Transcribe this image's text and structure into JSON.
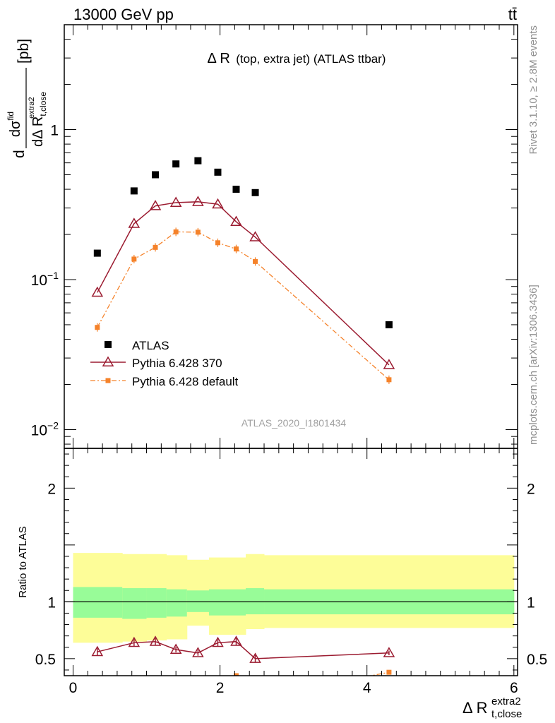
{
  "header": {
    "left": "13000 GeV pp",
    "right": "tt̄"
  },
  "sidebar": {
    "rivet": "Rivet 3.1.10, ≥ 2.8M events",
    "mcplots": "mcplots.cern.ch [arXiv:1306.3436]"
  },
  "chart_data": {
    "type": "scatter",
    "title": "Δ R (top, extra jet) (ATLAS ttbar)",
    "title_main": "Δ R",
    "title_small": "(top, extra jet) (ATLAS ttbar)",
    "analysis_tag": "ATLAS_2020_I1801434",
    "xlabel": "Δ R",
    "xlabel_sub": "t,close",
    "xlabel_sup": "extra2",
    "ylabel": "dσ/dΔR [pb]",
    "ylabel_parts": {
      "d": "d",
      "num": "dσ",
      "num_sup": "fid",
      "den": "dΔ R",
      "den_sub": "t,close",
      "den_sup": "extra2",
      "unit": "[pb]"
    },
    "xlim": [
      -0.12,
      6.05
    ],
    "main_panel": {
      "yscale": "log",
      "ylim": [
        0.0075,
        5.0
      ],
      "yticks": [
        {
          "value": 1,
          "label": "1"
        },
        {
          "value": 0.1,
          "base": "10",
          "exp": "−1"
        },
        {
          "value": 0.01,
          "base": "10",
          "exp": "−2"
        }
      ],
      "series": [
        {
          "name": "ATLAS",
          "style": "square-marker",
          "color": "#000000",
          "x": [
            0.33,
            0.83,
            1.12,
            1.4,
            1.7,
            1.97,
            2.22,
            2.48,
            4.3
          ],
          "y": [
            0.15,
            0.39,
            0.5,
            0.59,
            0.62,
            0.52,
            0.4,
            0.38,
            0.05
          ]
        },
        {
          "name": "Pythia 6.428 370",
          "style": "open-triangle-solid-line",
          "color": "#9b1b30",
          "x": [
            0.33,
            0.83,
            1.12,
            1.4,
            1.7,
            1.97,
            2.22,
            2.48,
            4.3
          ],
          "y": [
            0.082,
            0.236,
            0.31,
            0.326,
            0.33,
            0.318,
            0.243,
            0.192,
            0.027
          ]
        },
        {
          "name": "Pythia 6.428 default",
          "style": "filled-square-dashdot-line",
          "color": "#f5822a",
          "x": [
            0.33,
            0.83,
            1.12,
            1.4,
            1.7,
            1.97,
            2.22,
            2.48,
            4.3
          ],
          "y": [
            0.048,
            0.137,
            0.164,
            0.208,
            0.207,
            0.176,
            0.16,
            0.132,
            0.0215
          ]
        }
      ]
    },
    "ratio_panel": {
      "ylabel": "Ratio to ATLAS",
      "ylim": [
        0.35,
        2.35
      ],
      "yticks": [
        {
          "value": 0.5,
          "label": "0.5"
        },
        {
          "value": 1,
          "label": "1"
        },
        {
          "value": 2,
          "label": "2"
        }
      ],
      "xticks": [
        0,
        2,
        4,
        6
      ],
      "bin_edges": [
        0,
        0.67,
        1.0,
        1.27,
        1.55,
        1.85,
        2.1,
        2.35,
        2.6,
        6.0
      ],
      "band_outer": [
        [
          0.64,
          1.43
        ],
        [
          0.65,
          1.42
        ],
        [
          0.66,
          1.42
        ],
        [
          0.67,
          1.41
        ],
        [
          0.79,
          1.37
        ],
        [
          0.71,
          1.39
        ],
        [
          0.71,
          1.39
        ],
        [
          0.76,
          1.42
        ],
        [
          0.77,
          1.41
        ]
      ],
      "band_inner": [
        [
          0.86,
          1.13
        ],
        [
          0.85,
          1.12
        ],
        [
          0.86,
          1.12
        ],
        [
          0.87,
          1.11
        ],
        [
          0.91,
          1.1
        ],
        [
          0.88,
          1.11
        ],
        [
          0.88,
          1.11
        ],
        [
          0.89,
          1.12
        ],
        [
          0.89,
          1.11
        ]
      ],
      "series": [
        {
          "name": "Pythia 6.428 370",
          "color": "#9b1b30",
          "x": [
            0.33,
            0.83,
            1.12,
            1.4,
            1.7,
            1.97,
            2.22,
            2.48,
            4.3
          ],
          "y": [
            0.56,
            0.64,
            0.65,
            0.58,
            0.55,
            0.64,
            0.65,
            0.5,
            0.55
          ],
          "err": [
            0.03,
            0.03,
            0.03,
            0.025,
            0.025,
            0.03,
            0.03,
            0.03,
            0.02
          ]
        },
        {
          "name": "Pythia 6.428 default",
          "color": "#f5822a",
          "x": [
            2.22,
            4.3
          ],
          "y": [
            0.35,
            0.38
          ],
          "err": [
            0.02,
            0.02
          ],
          "line_from_x": 3.85
        }
      ]
    },
    "colors": {
      "band_outer": "#fdfd98",
      "band_inner": "#98fc98",
      "atlas": "#000000",
      "pythia370": "#9b1b30",
      "pythia_default": "#f5822a"
    }
  }
}
